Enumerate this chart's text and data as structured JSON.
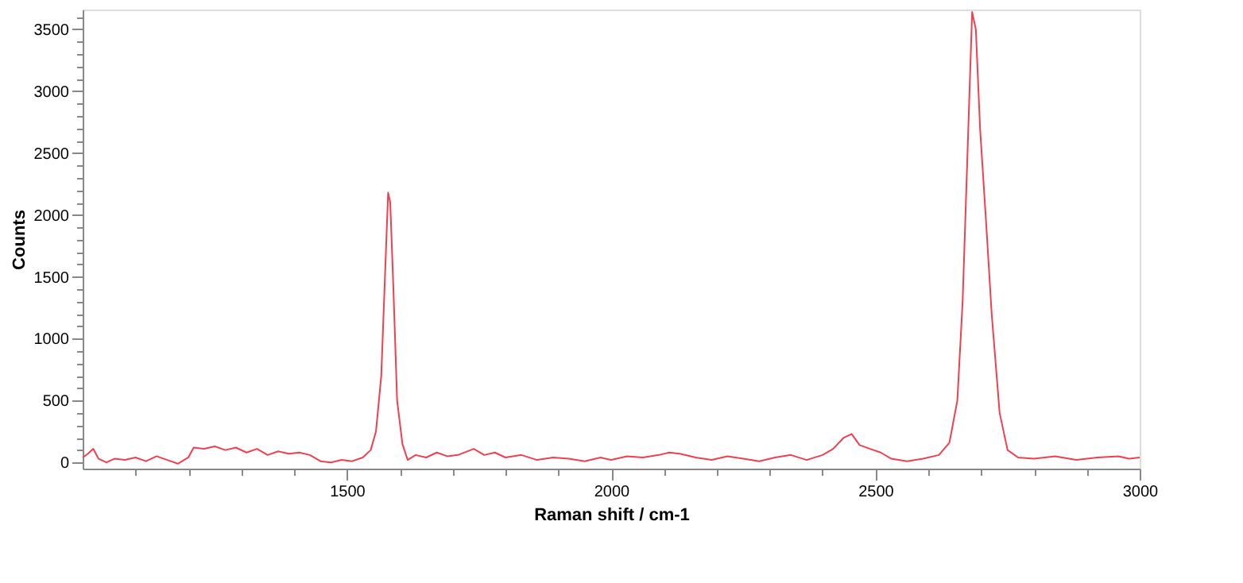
{
  "chart_data": {
    "type": "line",
    "xlabel": "Raman shift / cm-1",
    "ylabel": "Counts",
    "xlim": [
      1000,
      3000
    ],
    "ylim": [
      -50,
      3660
    ],
    "xticks": [
      {
        "value": 1100,
        "label": null
      },
      {
        "value": 1200,
        "label": null
      },
      {
        "value": 1300,
        "label": null
      },
      {
        "value": 1400,
        "label": null
      },
      1500,
      {
        "value": 1600,
        "label": null
      },
      {
        "value": 1700,
        "label": null
      },
      {
        "value": 1800,
        "label": null
      },
      {
        "value": 1900,
        "label": null
      },
      2000,
      {
        "value": 2100,
        "label": null
      },
      {
        "value": 2200,
        "label": null
      },
      {
        "value": 2300,
        "label": null
      },
      {
        "value": 2400,
        "label": null
      },
      2500,
      {
        "value": 2600,
        "label": null
      },
      {
        "value": 2700,
        "label": null
      },
      {
        "value": 2800,
        "label": null
      },
      {
        "value": 2900,
        "label": null
      },
      3000
    ],
    "yticks": [
      0,
      {
        "value": 100,
        "label": null
      },
      {
        "value": 200,
        "label": null
      },
      {
        "value": 300,
        "label": null
      },
      {
        "value": 400,
        "label": null
      },
      500,
      {
        "value": 600,
        "label": null
      },
      {
        "value": 700,
        "label": null
      },
      {
        "value": 800,
        "label": null
      },
      {
        "value": 900,
        "label": null
      },
      1000,
      {
        "value": 1100,
        "label": null
      },
      {
        "value": 1200,
        "label": null
      },
      {
        "value": 1300,
        "label": null
      },
      {
        "value": 1400,
        "label": null
      },
      1500,
      {
        "value": 1600,
        "label": null
      },
      {
        "value": 1700,
        "label": null
      },
      {
        "value": 1800,
        "label": null
      },
      {
        "value": 1900,
        "label": null
      },
      2000,
      {
        "value": 2100,
        "label": null
      },
      {
        "value": 2200,
        "label": null
      },
      {
        "value": 2300,
        "label": null
      },
      {
        "value": 2400,
        "label": null
      },
      2500,
      {
        "value": 2600,
        "label": null
      },
      {
        "value": 2700,
        "label": null
      },
      {
        "value": 2800,
        "label": null
      },
      {
        "value": 2900,
        "label": null
      },
      3000,
      {
        "value": 3100,
        "label": null
      },
      {
        "value": 3200,
        "label": null
      },
      {
        "value": 3300,
        "label": null
      },
      {
        "value": 3400,
        "label": null
      },
      3500,
      {
        "value": 3600,
        "label": null
      }
    ],
    "grid": false,
    "legend": false,
    "marker": "none",
    "line_style": "solid",
    "x": [
      1000,
      1010,
      1020,
      1030,
      1045,
      1060,
      1080,
      1100,
      1120,
      1140,
      1160,
      1180,
      1200,
      1210,
      1230,
      1250,
      1270,
      1290,
      1310,
      1330,
      1350,
      1370,
      1390,
      1410,
      1430,
      1450,
      1470,
      1490,
      1510,
      1530,
      1545,
      1555,
      1565,
      1572,
      1578,
      1582,
      1588,
      1595,
      1605,
      1615,
      1630,
      1650,
      1670,
      1690,
      1710,
      1740,
      1760,
      1780,
      1800,
      1830,
      1860,
      1890,
      1920,
      1950,
      1980,
      2000,
      2030,
      2060,
      2090,
      2110,
      2130,
      2160,
      2190,
      2220,
      2250,
      2280,
      2310,
      2340,
      2370,
      2400,
      2420,
      2440,
      2455,
      2470,
      2490,
      2510,
      2530,
      2560,
      2590,
      2620,
      2640,
      2655,
      2665,
      2675,
      2683,
      2690,
      2698,
      2710,
      2720,
      2735,
      2750,
      2770,
      2800,
      2840,
      2880,
      2920,
      2960,
      2980,
      3000
    ],
    "series": [
      {
        "color": "#f04050",
        "values": [
          40,
          70,
          110,
          30,
          0,
          30,
          20,
          40,
          10,
          50,
          20,
          -10,
          40,
          120,
          110,
          130,
          100,
          120,
          80,
          110,
          60,
          90,
          70,
          80,
          60,
          10,
          0,
          20,
          10,
          40,
          100,
          250,
          700,
          1500,
          2180,
          2100,
          1400,
          500,
          150,
          20,
          60,
          40,
          80,
          50,
          60,
          110,
          60,
          80,
          40,
          60,
          20,
          40,
          30,
          10,
          40,
          20,
          50,
          40,
          60,
          80,
          70,
          40,
          20,
          50,
          30,
          10,
          40,
          60,
          20,
          60,
          110,
          200,
          230,
          140,
          110,
          80,
          30,
          10,
          30,
          60,
          160,
          500,
          1300,
          2600,
          3640,
          3500,
          2700,
          1900,
          1200,
          400,
          100,
          40,
          30,
          50,
          20,
          40,
          50,
          30,
          40
        ]
      }
    ]
  }
}
